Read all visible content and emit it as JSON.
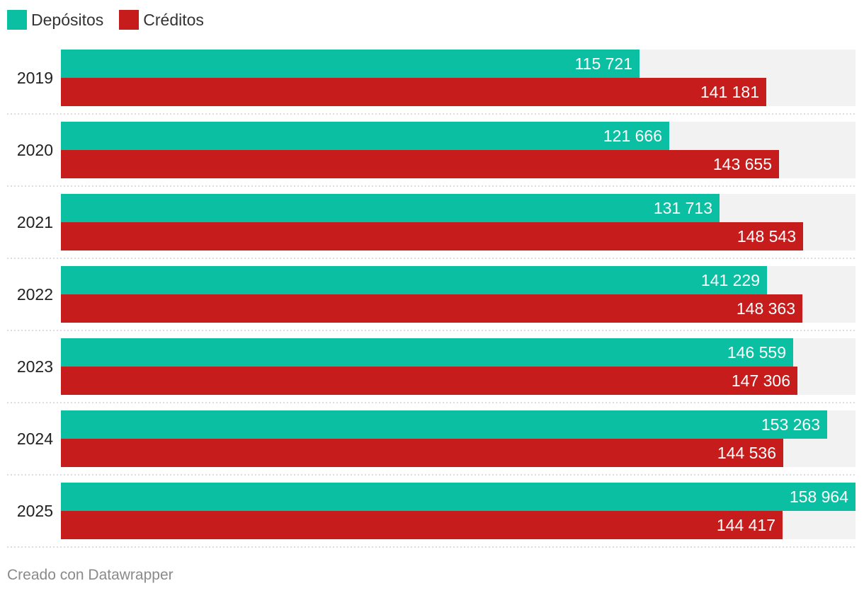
{
  "chart_data": {
    "type": "bar",
    "orientation": "horizontal",
    "categories": [
      "2019",
      "2020",
      "2021",
      "2022",
      "2023",
      "2024",
      "2025"
    ],
    "series": [
      {
        "name": "Depósitos",
        "color": "#0bbfa2",
        "values": [
          115721,
          121666,
          131713,
          141229,
          146559,
          153263,
          158964
        ],
        "labels": [
          "115 721",
          "121 666",
          "131 713",
          "141 229",
          "146 559",
          "153 263",
          "158 964"
        ]
      },
      {
        "name": "Créditos",
        "color": "#c71c1c",
        "values": [
          141181,
          143655,
          148543,
          148363,
          147306,
          144536,
          144417
        ],
        "labels": [
          "141 181",
          "143 655",
          "148 543",
          "148 363",
          "147 306",
          "144 536",
          "144 417"
        ]
      }
    ],
    "xlim": [
      0,
      158964
    ],
    "legend_position": "top-left",
    "background_track_color": "#f2f2f2"
  },
  "footer": {
    "text": "Creado con Datawrapper"
  }
}
